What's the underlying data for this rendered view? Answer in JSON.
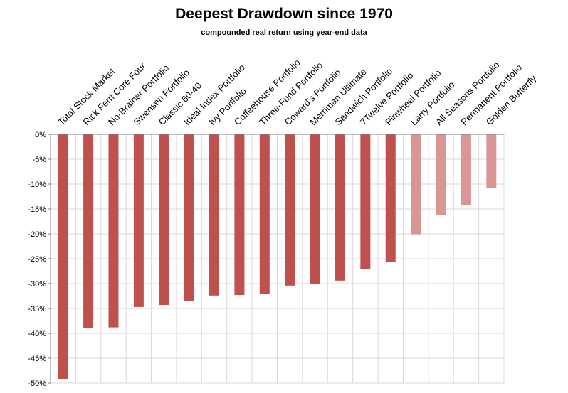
{
  "chart_data": {
    "type": "bar",
    "title": "Deepest Drawdown since 1970",
    "subtitle": "compounded real return using year-end data",
    "xlabel": "",
    "ylabel": "",
    "ylim": [
      -50,
      0
    ],
    "ytick_labels": [
      "0%",
      "-5%",
      "-10%",
      "-15%",
      "-20%",
      "-25%",
      "-30%",
      "-35%",
      "-40%",
      "-45%",
      "-50%"
    ],
    "grid": true,
    "categories": [
      "Total Stock Market",
      "Rick Ferri Core Four",
      "No-Brainer Portfolio",
      "Swensen Portfolio",
      "Classic 60-40",
      "Ideal Index Portfolio",
      "Ivy Portfolio",
      "Coffeehouse Portfolio",
      "Three-Fund Portfolio",
      "Coward's Portfolio",
      "Merriman Ultimate",
      "Sandwich Portfolio",
      "7Twelve Portfolio",
      "Pinwheel Portfolio",
      "Larry Portfolio",
      "All Seasons Portfolio",
      "Permanent Portfolio",
      "Golden Butterfly"
    ],
    "values": [
      -49.2,
      -38.9,
      -38.8,
      -34.7,
      -34.3,
      -33.5,
      -32.4,
      -32.3,
      -32.0,
      -30.4,
      -30.0,
      -29.4,
      -27.1,
      -25.7,
      -20.1,
      -16.2,
      -14.2,
      -10.8
    ],
    "colors": {
      "dark": "#c0504d",
      "light": "#d99694",
      "light_categories": [
        "Larry Portfolio",
        "All Seasons Portfolio",
        "Permanent Portfolio",
        "Golden Butterfly"
      ],
      "grid": "#d9d9d9",
      "axis": "#808080"
    }
  }
}
